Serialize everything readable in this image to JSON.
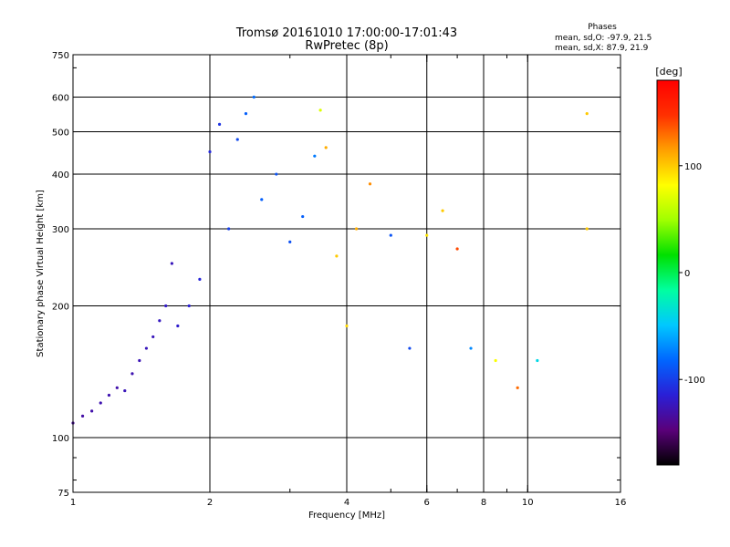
{
  "chart_data": {
    "type": "scatter",
    "title": "Tromsø 20161010 17:00:00-17:01:43",
    "subtitle": "RwPretec (8p)",
    "stats": {
      "heading": "Phases",
      "line_o": "mean, sd,O: -97.9, 21.5",
      "line_x": "mean, sd,X:  87.9, 21.9"
    },
    "xlabel": "Frequency [MHz]",
    "ylabel": "Stationary phase Virtual Height [km]",
    "x_scale": "log",
    "y_scale": "log",
    "xlim": [
      1,
      16
    ],
    "ylim": [
      75,
      750
    ],
    "x_ticks": [
      1,
      2,
      4,
      6,
      8,
      10,
      16
    ],
    "y_ticks": [
      75,
      100,
      200,
      300,
      400,
      500,
      600,
      750
    ],
    "x_gridlines": [
      2,
      4,
      6,
      8,
      10
    ],
    "y_gridlines": [
      100,
      200,
      300,
      400,
      500,
      600
    ],
    "grid": true,
    "colorbar": {
      "label": "[deg]",
      "range": [
        -180,
        180
      ],
      "ticks": [
        100,
        0,
        -100
      ],
      "colormap": [
        "#000000",
        "#5a007a",
        "#2a1fd6",
        "#0066ff",
        "#00c8ff",
        "#00ffa0",
        "#00e000",
        "#a0ff00",
        "#ffff00",
        "#ffa000",
        "#ff3000",
        "#ff0000"
      ]
    },
    "series": [
      {
        "points": [
          {
            "x": 1.0,
            "y": 108,
            "phase": -135
          },
          {
            "x": 1.05,
            "y": 112,
            "phase": -132
          },
          {
            "x": 1.1,
            "y": 115,
            "phase": -130
          },
          {
            "x": 1.15,
            "y": 120,
            "phase": -128
          },
          {
            "x": 1.2,
            "y": 125,
            "phase": -128
          },
          {
            "x": 1.25,
            "y": 130,
            "phase": -130
          },
          {
            "x": 1.3,
            "y": 128,
            "phase": -125
          },
          {
            "x": 1.35,
            "y": 140,
            "phase": -128
          },
          {
            "x": 1.4,
            "y": 150,
            "phase": -126
          },
          {
            "x": 1.45,
            "y": 160,
            "phase": -124
          },
          {
            "x": 1.5,
            "y": 170,
            "phase": -124
          },
          {
            "x": 1.55,
            "y": 185,
            "phase": -122
          },
          {
            "x": 1.6,
            "y": 200,
            "phase": -120
          },
          {
            "x": 1.65,
            "y": 250,
            "phase": -124
          },
          {
            "x": 1.7,
            "y": 180,
            "phase": -118
          },
          {
            "x": 1.8,
            "y": 200,
            "phase": -115
          },
          {
            "x": 1.9,
            "y": 230,
            "phase": -112
          },
          {
            "x": 2.0,
            "y": 450,
            "phase": -110
          },
          {
            "x": 2.1,
            "y": 520,
            "phase": -105
          },
          {
            "x": 2.2,
            "y": 300,
            "phase": -100
          },
          {
            "x": 2.3,
            "y": 480,
            "phase": -95
          },
          {
            "x": 2.4,
            "y": 550,
            "phase": -85
          },
          {
            "x": 2.5,
            "y": 600,
            "phase": -80
          },
          {
            "x": 2.6,
            "y": 350,
            "phase": -85
          },
          {
            "x": 2.8,
            "y": 400,
            "phase": -90
          },
          {
            "x": 3.0,
            "y": 280,
            "phase": -92
          },
          {
            "x": 3.2,
            "y": 320,
            "phase": -85
          },
          {
            "x": 3.4,
            "y": 440,
            "phase": -75
          },
          {
            "x": 3.5,
            "y": 560,
            "phase": 70
          },
          {
            "x": 3.6,
            "y": 460,
            "phase": 110
          },
          {
            "x": 3.8,
            "y": 260,
            "phase": 100
          },
          {
            "x": 4.0,
            "y": 180,
            "phase": 95
          },
          {
            "x": 4.2,
            "y": 300,
            "phase": 110
          },
          {
            "x": 4.5,
            "y": 380,
            "phase": 120
          },
          {
            "x": 5.0,
            "y": 290,
            "phase": -90
          },
          {
            "x": 5.5,
            "y": 160,
            "phase": -95
          },
          {
            "x": 6.0,
            "y": 290,
            "phase": 90
          },
          {
            "x": 6.5,
            "y": 330,
            "phase": 100
          },
          {
            "x": 7.0,
            "y": 270,
            "phase": 140
          },
          {
            "x": 7.5,
            "y": 160,
            "phase": -70
          },
          {
            "x": 8.5,
            "y": 150,
            "phase": 80
          },
          {
            "x": 9.5,
            "y": 130,
            "phase": 130
          },
          {
            "x": 10.5,
            "y": 150,
            "phase": -40
          },
          {
            "x": 13.5,
            "y": 550,
            "phase": 100
          },
          {
            "x": 13.5,
            "y": 300,
            "phase": 100
          }
        ]
      }
    ]
  }
}
